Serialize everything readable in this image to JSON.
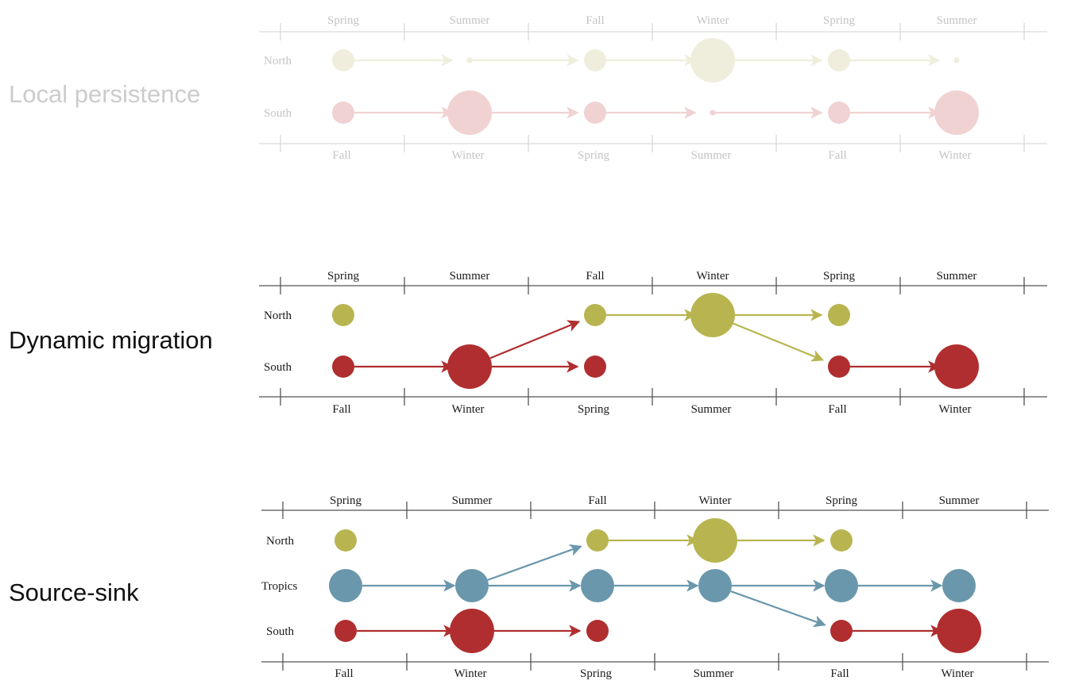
{
  "colors": {
    "north": "#b8b551",
    "tropics": "#6a97ac",
    "south": "#b02e2f",
    "faded_north": "#efeedc",
    "faded_south": "#f0d2d2"
  },
  "panels": [
    {
      "id": "local-persistence",
      "title": "Local persistence",
      "faded": true,
      "top_seasons": [
        "Spring",
        "Summer",
        "Fall",
        "Winter",
        "Spring",
        "Summer"
      ],
      "bottom_seasons": [
        "Fall",
        "Winter",
        "Spring",
        "Summer",
        "Fall",
        "Winter"
      ],
      "rows": [
        {
          "label": "North",
          "color": "faded_north",
          "relative_sizes": [
            0.5,
            0.12,
            0.5,
            1.0,
            0.5,
            0.12
          ]
        },
        {
          "label": "South",
          "color": "faded_south",
          "relative_sizes": [
            0.5,
            1.0,
            0.5,
            0.12,
            0.5,
            1.0
          ]
        }
      ],
      "flows": [
        {
          "from": [
            0,
            0
          ],
          "to": [
            0,
            1
          ]
        },
        {
          "from": [
            0,
            1
          ],
          "to": [
            0,
            2
          ]
        },
        {
          "from": [
            0,
            2
          ],
          "to": [
            0,
            3
          ]
        },
        {
          "from": [
            0,
            3
          ],
          "to": [
            0,
            4
          ]
        },
        {
          "from": [
            0,
            4
          ],
          "to": [
            0,
            5
          ]
        },
        {
          "from": [
            1,
            0
          ],
          "to": [
            1,
            1
          ]
        },
        {
          "from": [
            1,
            1
          ],
          "to": [
            1,
            2
          ]
        },
        {
          "from": [
            1,
            2
          ],
          "to": [
            1,
            3
          ]
        },
        {
          "from": [
            1,
            3
          ],
          "to": [
            1,
            4
          ]
        },
        {
          "from": [
            1,
            4
          ],
          "to": [
            1,
            5
          ]
        }
      ]
    },
    {
      "id": "dynamic-migration",
      "title": "Dynamic migration",
      "faded": false,
      "top_seasons": [
        "Spring",
        "Summer",
        "Fall",
        "Winter",
        "Spring",
        "Summer"
      ],
      "bottom_seasons": [
        "Fall",
        "Winter",
        "Spring",
        "Summer",
        "Fall",
        "Winter"
      ],
      "rows": [
        {
          "label": "North",
          "color": "north",
          "relative_sizes": [
            0.5,
            0,
            0.5,
            1.0,
            0.5,
            0
          ]
        },
        {
          "label": "South",
          "color": "south",
          "relative_sizes": [
            0.5,
            1.0,
            0.5,
            0,
            0.5,
            1.0
          ]
        }
      ],
      "flows": [
        {
          "from": [
            1,
            0
          ],
          "to": [
            1,
            1
          ]
        },
        {
          "from": [
            1,
            1
          ],
          "to": [
            0,
            2
          ]
        },
        {
          "from": [
            1,
            1
          ],
          "to": [
            1,
            2
          ]
        },
        {
          "from": [
            0,
            2
          ],
          "to": [
            0,
            3
          ]
        },
        {
          "from": [
            0,
            3
          ],
          "to": [
            0,
            4
          ]
        },
        {
          "from": [
            0,
            3
          ],
          "to": [
            1,
            4
          ]
        },
        {
          "from": [
            1,
            4
          ],
          "to": [
            1,
            5
          ]
        }
      ]
    },
    {
      "id": "source-sink",
      "title": "Source-sink",
      "faded": false,
      "top_seasons": [
        "Spring",
        "Summer",
        "Fall",
        "Winter",
        "Spring",
        "Summer"
      ],
      "bottom_seasons": [
        "Fall",
        "Winter",
        "Spring",
        "Summer",
        "Fall",
        "Winter"
      ],
      "rows": [
        {
          "label": "North",
          "color": "north",
          "relative_sizes": [
            0.5,
            0,
            0.5,
            1.0,
            0.5,
            0
          ]
        },
        {
          "label": "Tropics",
          "color": "tropics",
          "relative_sizes": [
            0.75,
            0.75,
            0.75,
            0.75,
            0.75,
            0.75
          ]
        },
        {
          "label": "South",
          "color": "south",
          "relative_sizes": [
            0.5,
            1.0,
            0.5,
            0,
            0.5,
            1.0
          ]
        }
      ],
      "flows": [
        {
          "from": [
            1,
            0
          ],
          "to": [
            1,
            1
          ]
        },
        {
          "from": [
            1,
            1
          ],
          "to": [
            0,
            2
          ]
        },
        {
          "from": [
            1,
            1
          ],
          "to": [
            1,
            2
          ]
        },
        {
          "from": [
            1,
            2
          ],
          "to": [
            1,
            3
          ]
        },
        {
          "from": [
            1,
            3
          ],
          "to": [
            1,
            4
          ]
        },
        {
          "from": [
            1,
            3
          ],
          "to": [
            2,
            4
          ]
        },
        {
          "from": [
            1,
            4
          ],
          "to": [
            1,
            5
          ]
        },
        {
          "from": [
            0,
            2
          ],
          "to": [
            0,
            3
          ]
        },
        {
          "from": [
            0,
            3
          ],
          "to": [
            0,
            4
          ]
        },
        {
          "from": [
            2,
            0
          ],
          "to": [
            2,
            1
          ]
        },
        {
          "from": [
            2,
            1
          ],
          "to": [
            2,
            2
          ]
        },
        {
          "from": [
            2,
            4
          ],
          "to": [
            2,
            5
          ]
        }
      ]
    }
  ]
}
